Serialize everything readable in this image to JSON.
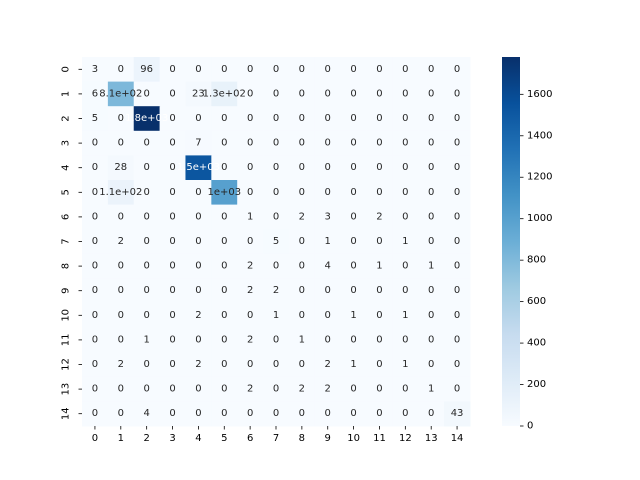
{
  "chart_data": {
    "type": "heatmap",
    "title": "",
    "xlabel": "",
    "ylabel": "",
    "x_categories": [
      "0",
      "1",
      "2",
      "3",
      "4",
      "5",
      "6",
      "7",
      "8",
      "9",
      "10",
      "11",
      "12",
      "13",
      "14"
    ],
    "y_categories": [
      "0",
      "1",
      "2",
      "3",
      "4",
      "5",
      "6",
      "7",
      "8",
      "9",
      "10",
      "11",
      "12",
      "13",
      "14"
    ],
    "values": [
      [
        3,
        0,
        96,
        0,
        0,
        0,
        0,
        0,
        0,
        0,
        0,
        0,
        0,
        0,
        0
      ],
      [
        6,
        810,
        0,
        0,
        23,
        130,
        0,
        0,
        0,
        0,
        0,
        0,
        0,
        0,
        0
      ],
      [
        5,
        0,
        1780,
        0,
        0,
        0,
        0,
        0,
        0,
        0,
        0,
        0,
        0,
        0,
        0
      ],
      [
        0,
        0,
        0,
        0,
        7,
        0,
        0,
        0,
        0,
        0,
        0,
        0,
        0,
        0,
        0
      ],
      [
        0,
        28,
        0,
        0,
        1520,
        0,
        0,
        0,
        0,
        0,
        0,
        0,
        0,
        0,
        0
      ],
      [
        0,
        110,
        0,
        0,
        0,
        1000,
        0,
        0,
        0,
        0,
        0,
        0,
        0,
        0,
        0
      ],
      [
        0,
        0,
        0,
        0,
        0,
        0,
        1,
        0,
        2,
        3,
        0,
        2,
        0,
        0,
        0
      ],
      [
        0,
        2,
        0,
        0,
        0,
        0,
        0,
        5,
        0,
        1,
        0,
        0,
        1,
        0,
        0
      ],
      [
        0,
        0,
        0,
        0,
        0,
        0,
        2,
        0,
        0,
        4,
        0,
        1,
        0,
        1,
        0
      ],
      [
        0,
        0,
        0,
        0,
        0,
        0,
        2,
        2,
        0,
        0,
        0,
        0,
        0,
        0,
        0
      ],
      [
        0,
        0,
        0,
        0,
        2,
        0,
        0,
        1,
        0,
        0,
        1,
        0,
        1,
        0,
        0
      ],
      [
        0,
        0,
        1,
        0,
        0,
        0,
        2,
        0,
        1,
        0,
        0,
        0,
        0,
        0,
        0
      ],
      [
        0,
        2,
        0,
        0,
        2,
        0,
        0,
        0,
        0,
        2,
        1,
        0,
        1,
        0,
        0
      ],
      [
        0,
        0,
        0,
        0,
        0,
        0,
        2,
        0,
        2,
        2,
        0,
        0,
        0,
        1,
        0
      ],
      [
        0,
        0,
        4,
        0,
        0,
        0,
        0,
        0,
        0,
        0,
        0,
        0,
        0,
        0,
        43
      ]
    ],
    "annotations": [
      [
        "3",
        "0",
        "96",
        "0",
        "0",
        "0",
        "0",
        "0",
        "0",
        "0",
        "0",
        "0",
        "0",
        "0",
        "0"
      ],
      [
        "6",
        "8.1e+02",
        "0",
        "0",
        "23",
        "1.3e+02",
        "0",
        "0",
        "0",
        "0",
        "0",
        "0",
        "0",
        "0",
        "0"
      ],
      [
        "5",
        "0",
        "1.8e+03",
        "0",
        "0",
        "0",
        "0",
        "0",
        "0",
        "0",
        "0",
        "0",
        "0",
        "0",
        "0"
      ],
      [
        "0",
        "0",
        "0",
        "0",
        "7",
        "0",
        "0",
        "0",
        "0",
        "0",
        "0",
        "0",
        "0",
        "0",
        "0"
      ],
      [
        "0",
        "28",
        "0",
        "0",
        "1.5e+03",
        "0",
        "0",
        "0",
        "0",
        "0",
        "0",
        "0",
        "0",
        "0",
        "0"
      ],
      [
        "0",
        "1.1e+02",
        "0",
        "0",
        "0",
        "1e+03",
        "0",
        "0",
        "0",
        "0",
        "0",
        "0",
        "0",
        "0",
        "0"
      ],
      [
        "0",
        "0",
        "0",
        "0",
        "0",
        "0",
        "1",
        "0",
        "2",
        "3",
        "0",
        "2",
        "0",
        "0",
        "0"
      ],
      [
        "0",
        "2",
        "0",
        "0",
        "0",
        "0",
        "0",
        "5",
        "0",
        "1",
        "0",
        "0",
        "1",
        "0",
        "0"
      ],
      [
        "0",
        "0",
        "0",
        "0",
        "0",
        "0",
        "2",
        "0",
        "0",
        "4",
        "0",
        "1",
        "0",
        "1",
        "0"
      ],
      [
        "0",
        "0",
        "0",
        "0",
        "0",
        "0",
        "2",
        "2",
        "0",
        "0",
        "0",
        "0",
        "0",
        "0",
        "0"
      ],
      [
        "0",
        "0",
        "0",
        "0",
        "2",
        "0",
        "0",
        "1",
        "0",
        "0",
        "1",
        "0",
        "1",
        "0",
        "0"
      ],
      [
        "0",
        "0",
        "1",
        "0",
        "0",
        "0",
        "2",
        "0",
        "1",
        "0",
        "0",
        "0",
        "0",
        "0",
        "0"
      ],
      [
        "0",
        "2",
        "0",
        "0",
        "2",
        "0",
        "0",
        "0",
        "0",
        "2",
        "1",
        "0",
        "1",
        "0",
        "0"
      ],
      [
        "0",
        "0",
        "0",
        "0",
        "0",
        "0",
        "2",
        "0",
        "2",
        "2",
        "0",
        "0",
        "0",
        "1",
        "0"
      ],
      [
        "0",
        "0",
        "4",
        "0",
        "0",
        "0",
        "0",
        "0",
        "0",
        "0",
        "0",
        "0",
        "0",
        "0",
        "43"
      ]
    ],
    "colorscale": "Blues",
    "colorbar": {
      "range": [
        0,
        1780
      ],
      "ticks": [
        0,
        200,
        400,
        600,
        800,
        1000,
        1200,
        1400,
        1600
      ],
      "tick_labels": [
        "0",
        "200",
        "400",
        "600",
        "800",
        "1000",
        "1200",
        "1400",
        "1600"
      ]
    },
    "grid": false,
    "colors": {
      "low": "#f7fbff",
      "high": "#08306b",
      "text_dark": "#262626",
      "text_light": "#ffffff"
    }
  }
}
